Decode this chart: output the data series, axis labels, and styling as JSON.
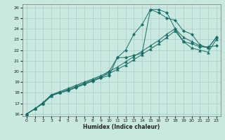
{
  "xlabel": "Humidex (Indice chaleur)",
  "background_color": "#c8e8e0",
  "grid_color": "#aaccc8",
  "line_color": "#1a6e68",
  "xlim": [
    -0.5,
    23.5
  ],
  "ylim": [
    15.8,
    26.3
  ],
  "xticks": [
    0,
    1,
    2,
    3,
    4,
    5,
    6,
    7,
    8,
    9,
    10,
    11,
    12,
    13,
    14,
    15,
    16,
    17,
    18,
    19,
    20,
    21,
    22,
    23
  ],
  "yticks": [
    16,
    17,
    18,
    19,
    20,
    21,
    22,
    23,
    24,
    25,
    26
  ],
  "series": [
    {
      "x": [
        0,
        1,
        2,
        3,
        4,
        5,
        6,
        7,
        8,
        9,
        10,
        11,
        12,
        13,
        14,
        15,
        16,
        17,
        18,
        19,
        20,
        21,
        22,
        23
      ],
      "y": [
        16.0,
        16.5,
        17.0,
        17.8,
        18.0,
        18.2,
        18.5,
        18.8,
        19.1,
        19.4,
        19.6,
        21.3,
        21.3,
        21.5,
        21.7,
        25.8,
        25.8,
        25.5,
        24.0,
        22.8,
        22.6,
        22.3,
        22.3,
        22.4
      ],
      "marker": "D",
      "ms": 2.2
    },
    {
      "x": [
        0,
        1,
        2,
        3,
        4,
        5,
        6,
        7,
        8,
        9,
        10,
        11,
        12,
        13,
        14,
        15,
        16,
        17,
        18,
        19,
        20,
        21,
        22,
        23
      ],
      "y": [
        16.0,
        16.5,
        17.0,
        17.8,
        18.0,
        18.2,
        18.5,
        18.8,
        19.1,
        19.4,
        20.0,
        21.3,
        22.0,
        23.5,
        24.4,
        25.8,
        25.5,
        25.0,
        24.8,
        23.8,
        23.5,
        22.5,
        22.2,
        23.2
      ],
      "marker": "D",
      "ms": 2.2
    },
    {
      "x": [
        0,
        1,
        2,
        3,
        4,
        5,
        6,
        7,
        8,
        9,
        10,
        11,
        12,
        13,
        14,
        15,
        16,
        17,
        18,
        19,
        20,
        21,
        22,
        23
      ],
      "y": [
        16.0,
        16.5,
        17.0,
        17.7,
        18.0,
        18.3,
        18.6,
        18.9,
        19.2,
        19.5,
        19.8,
        20.2,
        20.6,
        21.1,
        21.6,
        22.1,
        22.6,
        23.2,
        23.8,
        22.8,
        22.2,
        22.0,
        21.8,
        23.0
      ],
      "marker": "^",
      "ms": 2.8
    },
    {
      "x": [
        0,
        1,
        2,
        3,
        4,
        5,
        6,
        7,
        8,
        9,
        10,
        11,
        12,
        13,
        14,
        15,
        16,
        17,
        18,
        19,
        20,
        21,
        22,
        23
      ],
      "y": [
        16.0,
        16.5,
        17.1,
        17.8,
        18.1,
        18.4,
        18.7,
        19.0,
        19.3,
        19.6,
        20.0,
        20.4,
        20.9,
        21.4,
        21.9,
        22.4,
        22.9,
        23.5,
        24.0,
        23.2,
        22.8,
        22.4,
        22.2,
        23.2
      ],
      "marker": "^",
      "ms": 2.8
    }
  ]
}
